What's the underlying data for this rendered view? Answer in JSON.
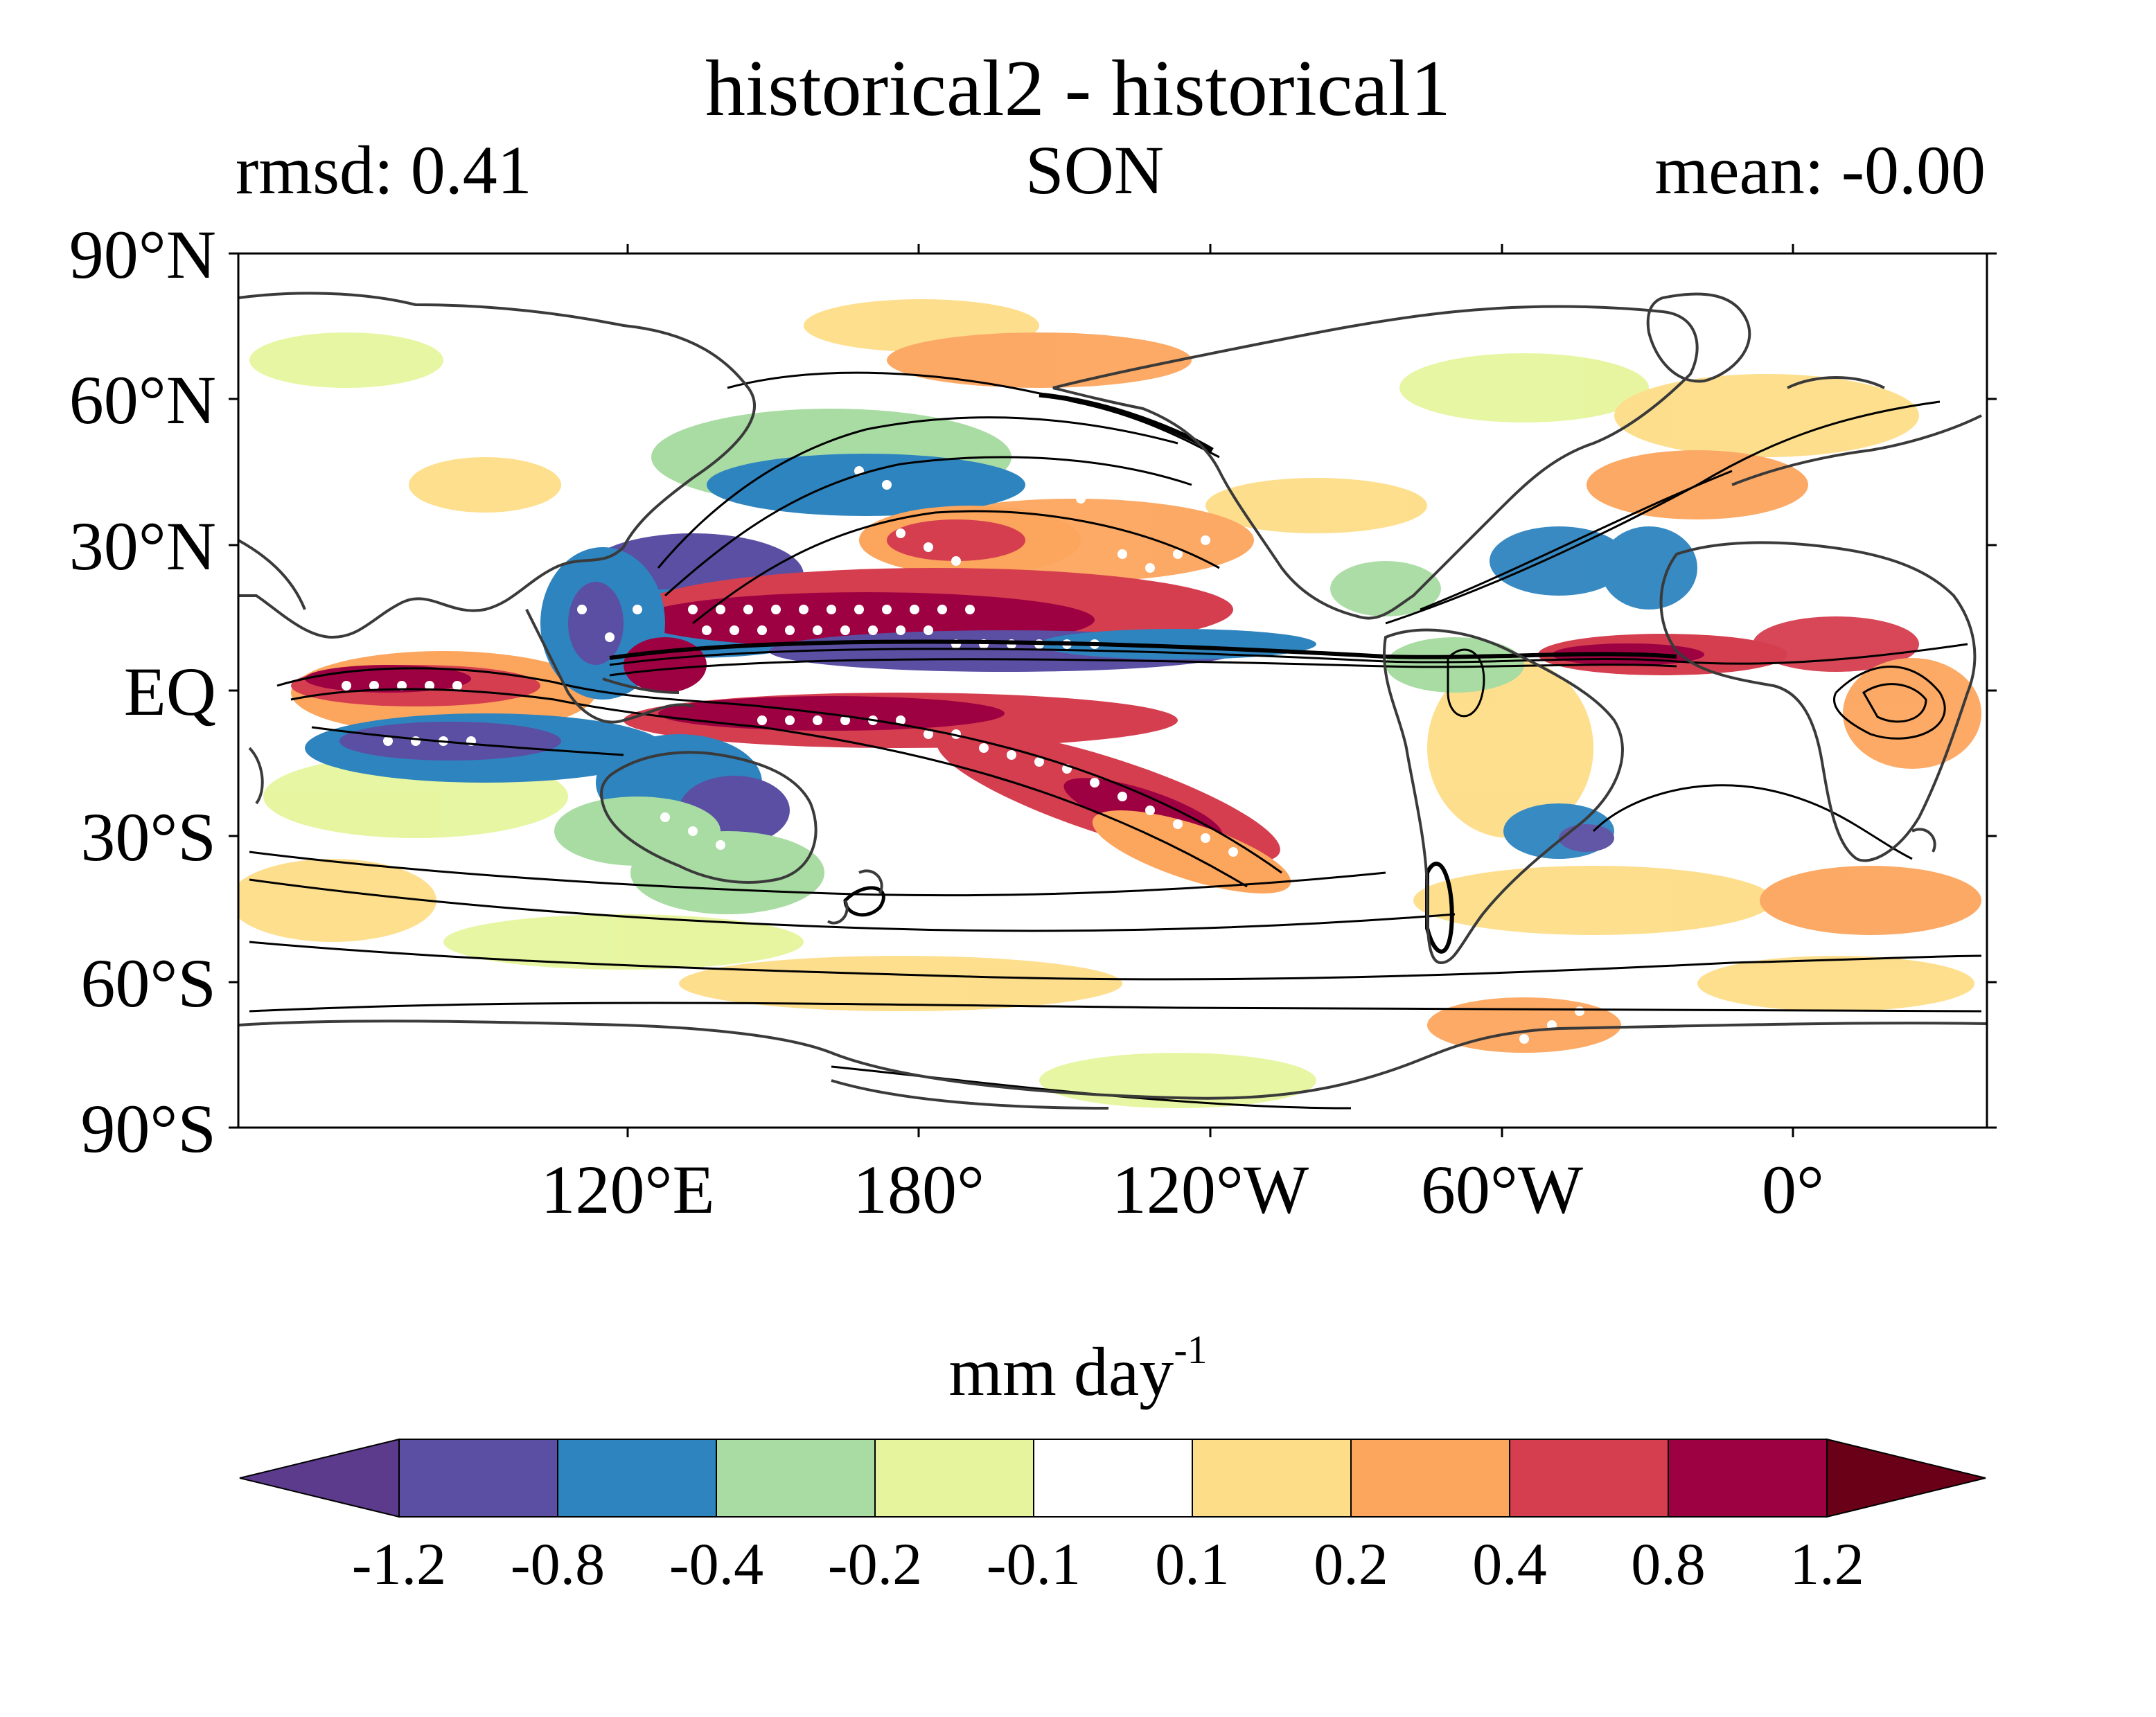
{
  "title": "historical2 - historical1",
  "subtitle": {
    "left": "rmsd: 0.41",
    "center": "SON",
    "right": "mean: -0.00"
  },
  "lat_ticks": [
    "90°N",
    "60°N",
    "30°N",
    "EQ",
    "30°S",
    "60°S",
    "90°S"
  ],
  "lon_ticks": [
    "120°E",
    "180°",
    "120°W",
    "60°W",
    "0°"
  ],
  "colorbar": {
    "units_main": "mm day",
    "units_exp": "-1",
    "labels": [
      "-1.2",
      "-0.8",
      "-0.4",
      "-0.2",
      "-0.1",
      "0.1",
      "0.2",
      "0.4",
      "0.8",
      "1.2"
    ],
    "colors": [
      "#5c3a8c",
      "#5a4fa3",
      "#2e84bf",
      "#a8dca2",
      "#e6f59d",
      "#ffffff",
      "#fddd87",
      "#fca55d",
      "#d53e4f",
      "#9e0142",
      "#6a0018"
    ]
  },
  "legend_colors": {
    "strong_positive": "#9e0142",
    "positive": "#d53e4f",
    "moderate_positive": "#fca55d",
    "weak_positive": "#fddd87",
    "weak_negative": "#e6f59d",
    "moderate_negative": "#a8dca2",
    "negative": "#2e84bf",
    "strong_negative": "#5a4fa3"
  }
}
